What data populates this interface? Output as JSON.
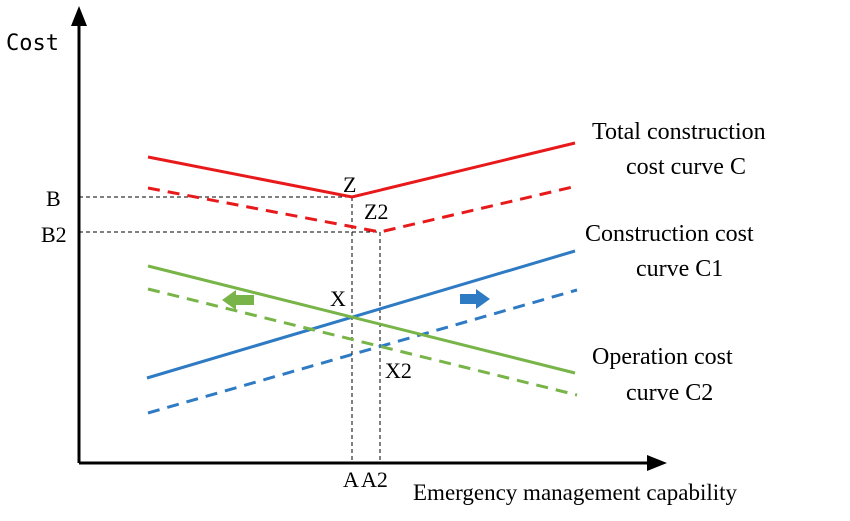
{
  "axes": {
    "y_label": "Cost",
    "x_label": "Emergency management capability"
  },
  "tick_labels": {
    "b": "B",
    "b2": "B2",
    "a": "A",
    "a2": "A2"
  },
  "point_labels": {
    "z": "Z",
    "z2": "Z2",
    "x": "X",
    "x2": "X2"
  },
  "curve_labels": {
    "total_line1": "Total construction",
    "total_line2": "cost curve C",
    "construction_line1": "Construction cost",
    "construction_line2": "curve C1",
    "operation_line1": "Operation cost",
    "operation_line2": "curve C2"
  },
  "colors": {
    "total": "#e8191b",
    "construction": "#2e7bc4",
    "operation": "#78b447",
    "axis": "#000000",
    "guide": "#000000"
  },
  "icons": {
    "left_arrow": "green-left-arrow-icon",
    "right_arrow": "blue-right-arrow-icon"
  }
}
